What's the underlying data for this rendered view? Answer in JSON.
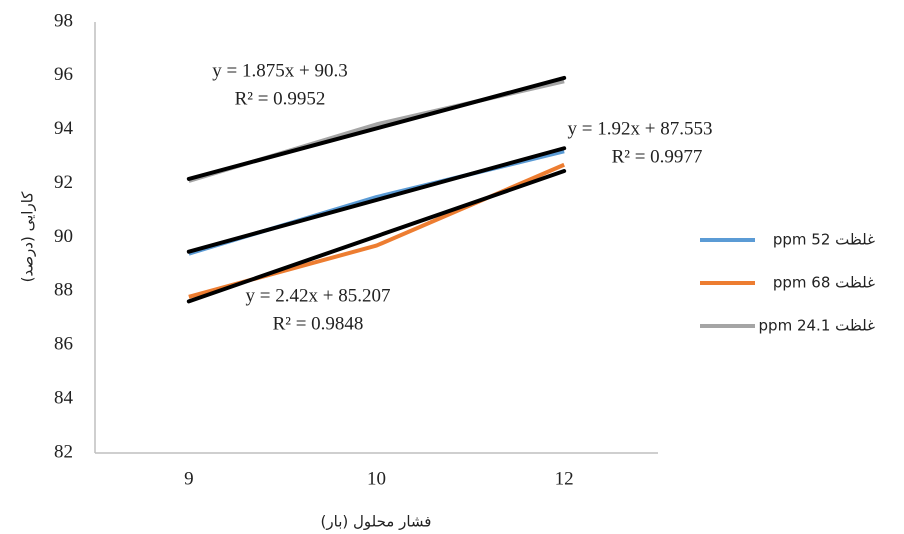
{
  "chart_data": {
    "type": "line",
    "x_label": "فشار محلول (بار)",
    "y_label": "کارایی (درصد)",
    "categories": [
      "9",
      "10",
      "12"
    ],
    "series": [
      {
        "name": "غلظت 52 ppm",
        "color": "#5b9bd5",
        "values": [
          89.4,
          91.5,
          93.2
        ]
      },
      {
        "name": "غلظت 68 ppm",
        "color": "#ed7d31",
        "values": [
          87.8,
          89.7,
          92.7
        ]
      },
      {
        "name": "غلظت 24.1 ppm",
        "color": "#a5a5a5",
        "values": [
          92.1,
          94.2,
          95.8
        ]
      }
    ],
    "trendlines": [
      {
        "color": "#000000",
        "slope": 1.92,
        "intercept": 87.553,
        "equation": "y = 1.92x + 87.553",
        "r2": "R² = 0.9977"
      },
      {
        "color": "#000000",
        "slope": 2.42,
        "intercept": 85.207,
        "equation": "y = 2.42x + 85.207",
        "r2": "R² = 0.9848"
      },
      {
        "color": "#000000",
        "slope": 1.875,
        "intercept": 90.3,
        "equation": "y = 1.875x + 90.3",
        "r2": "R² = 0.9952"
      }
    ],
    "ylim": [
      82,
      98
    ],
    "yticks": [
      82,
      84,
      86,
      88,
      90,
      92,
      94,
      96,
      98
    ],
    "grid": false,
    "legend": "right"
  }
}
